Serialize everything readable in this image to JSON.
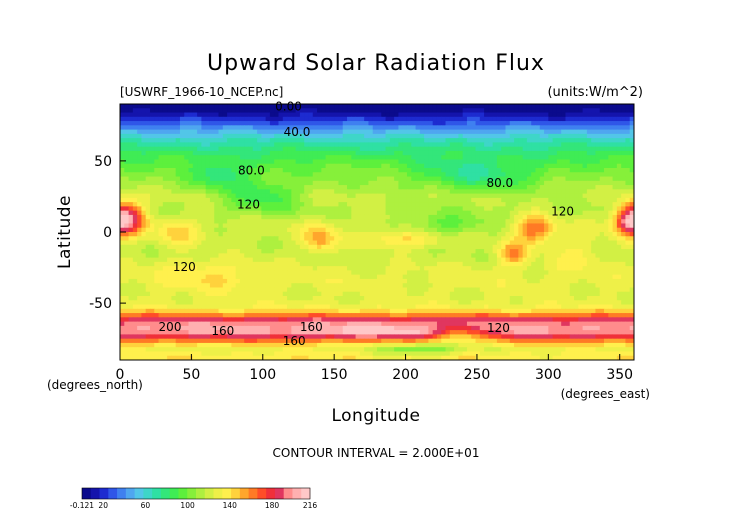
{
  "chart_data": {
    "type": "heatmap",
    "title": "Upward Solar Radiation Flux",
    "file_label": "[USWRF_1966-10_NCEP.nc]",
    "units_label": "(units:W/m^2)",
    "xlabel": "Longitude",
    "ylabel": "Latitude",
    "x_unit_label": "(degrees_east)",
    "y_unit_label": "(degrees_north)",
    "xlim": [
      0,
      360
    ],
    "ylim": [
      -90,
      90
    ],
    "x_ticks": [
      0,
      50,
      100,
      150,
      200,
      250,
      300,
      350
    ],
    "y_ticks": [
      -50,
      0,
      50
    ],
    "contour_interval_text": "CONTOUR INTERVAL = 2.000E+01",
    "contour_labels": [
      {
        "text": "0.00",
        "lon": 118,
        "lat": 88
      },
      {
        "text": "40.0",
        "lon": 124,
        "lat": 70
      },
      {
        "text": "80.0",
        "lon": 92,
        "lat": 43
      },
      {
        "text": "80.0",
        "lon": 266,
        "lat": 34
      },
      {
        "text": "120",
        "lon": 90,
        "lat": 19
      },
      {
        "text": "120",
        "lon": 310,
        "lat": 14
      },
      {
        "text": "120",
        "lon": 45,
        "lat": -25
      },
      {
        "text": "120",
        "lon": 265,
        "lat": -68
      },
      {
        "text": "160",
        "lon": 72,
        "lat": -70
      },
      {
        "text": "160",
        "lon": 134,
        "lat": -67
      },
      {
        "text": "160",
        "lon": 122,
        "lat": -77
      },
      {
        "text": "200",
        "lon": 35,
        "lat": -67
      }
    ],
    "colorbar": {
      "tick_labels": [
        "-0.121",
        "20",
        "60",
        "100",
        "140",
        "180",
        "216"
      ],
      "min": -0.121,
      "max": 216,
      "colors": [
        "#0b0b8c",
        "#1414ac",
        "#1d2bd0",
        "#2f56e8",
        "#3f80f0",
        "#4fa6f0",
        "#52c6e8",
        "#3ed6c8",
        "#2fe0a3",
        "#33e67a",
        "#3fec55",
        "#5df03c",
        "#86f03a",
        "#aef03f",
        "#d2f044",
        "#eef048",
        "#fff04d",
        "#ffd23c",
        "#ffa62c",
        "#ff7a25",
        "#ff4d28",
        "#f0303a",
        "#e0365f",
        "#ff8c8c",
        "#ffb0b0",
        "#ffc8c8"
      ]
    },
    "fields": {
      "zonal_profile": [
        {
          "lat": 90,
          "value": 0
        },
        {
          "lat": 85,
          "value": 5
        },
        {
          "lat": 78,
          "value": 25
        },
        {
          "lat": 72,
          "value": 45
        },
        {
          "lat": 65,
          "value": 65
        },
        {
          "lat": 55,
          "value": 85
        },
        {
          "lat": 45,
          "value": 100
        },
        {
          "lat": 35,
          "value": 110
        },
        {
          "lat": 25,
          "value": 118
        },
        {
          "lat": 15,
          "value": 115
        },
        {
          "lat": 5,
          "value": 122
        },
        {
          "lat": -5,
          "value": 120
        },
        {
          "lat": -15,
          "value": 118
        },
        {
          "lat": -25,
          "value": 125
        },
        {
          "lat": -35,
          "value": 128
        },
        {
          "lat": -45,
          "value": 125
        },
        {
          "lat": -52,
          "value": 130
        },
        {
          "lat": -57,
          "value": 150
        },
        {
          "lat": -62,
          "value": 190
        },
        {
          "lat": -66,
          "value": 200
        },
        {
          "lat": -70,
          "value": 200
        },
        {
          "lat": -74,
          "value": 180
        },
        {
          "lat": -78,
          "value": 150
        },
        {
          "lat": -82,
          "value": 130
        },
        {
          "lat": -86,
          "value": 135
        },
        {
          "lat": -90,
          "value": 140
        }
      ],
      "anomalies": [
        {
          "lon": 5,
          "lat": 10,
          "dlon": 12,
          "dlat": 12,
          "amp": 75
        },
        {
          "lon": 355,
          "lat": 8,
          "dlon": 10,
          "dlat": 10,
          "amp": 55
        },
        {
          "lon": 290,
          "lat": 2,
          "dlon": 14,
          "dlat": 10,
          "amp": 45
        },
        {
          "lon": 275,
          "lat": -15,
          "dlon": 10,
          "dlat": 8,
          "amp": 40
        },
        {
          "lon": 100,
          "lat": 25,
          "dlon": 25,
          "dlat": 12,
          "amp": -30
        },
        {
          "lon": 70,
          "lat": 40,
          "dlon": 18,
          "dlat": 10,
          "amp": -30
        },
        {
          "lon": 250,
          "lat": 40,
          "dlon": 40,
          "dlat": 12,
          "amp": -30
        },
        {
          "lon": 140,
          "lat": -5,
          "dlon": 12,
          "dlat": 10,
          "amp": 35
        },
        {
          "lon": 40,
          "lat": 0,
          "dlon": 14,
          "dlat": 10,
          "amp": 25
        },
        {
          "lon": 200,
          "lat": -5,
          "dlon": 30,
          "dlat": 6,
          "amp": 25
        },
        {
          "lon": 230,
          "lat": 5,
          "dlon": 30,
          "dlat": 8,
          "amp": -25
        },
        {
          "lon": 60,
          "lat": -30,
          "dlon": 30,
          "dlat": 12,
          "amp": 15
        },
        {
          "lon": 320,
          "lat": -15,
          "dlon": 20,
          "dlat": 12,
          "amp": 15
        },
        {
          "lon": 180,
          "lat": -70,
          "dlon": 60,
          "dlat": 4,
          "amp": 15
        },
        {
          "lon": 240,
          "lat": -72,
          "dlon": 20,
          "dlat": 6,
          "amp": -40
        },
        {
          "lon": 210,
          "lat": -82,
          "dlon": 30,
          "dlat": 5,
          "amp": -30
        }
      ]
    }
  }
}
